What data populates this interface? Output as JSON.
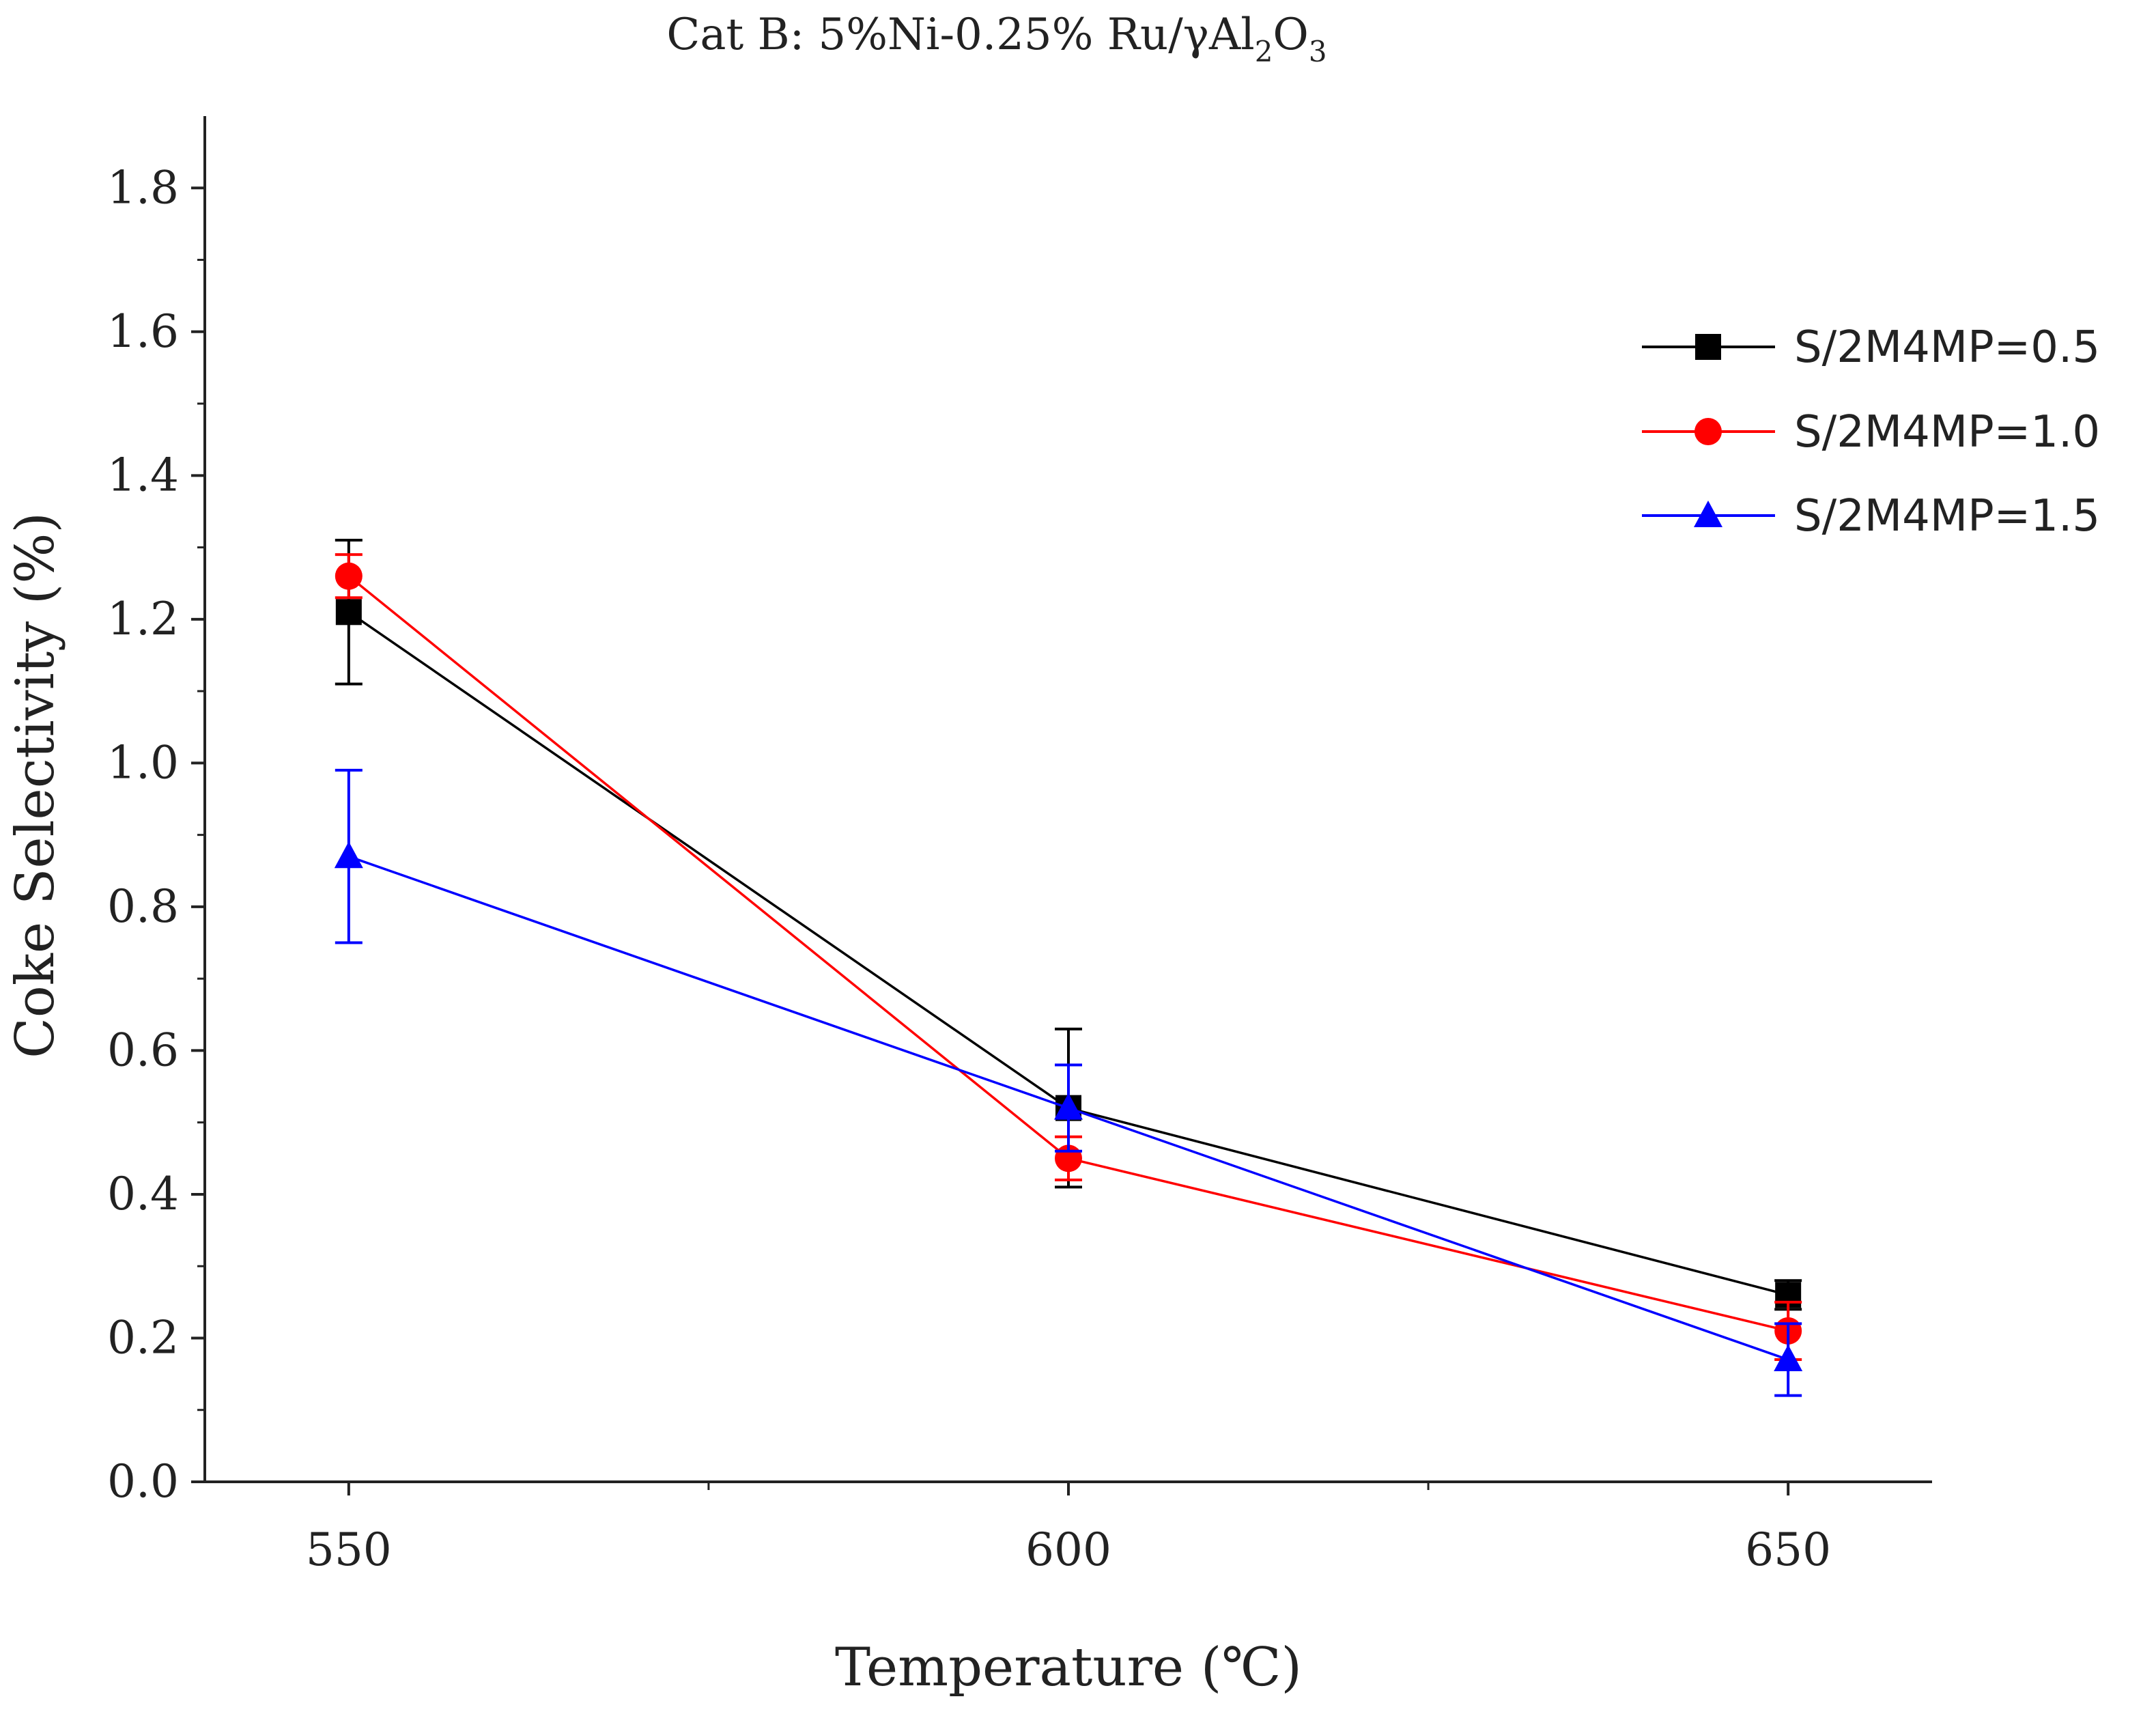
{
  "chart_data": {
    "type": "line",
    "title_parts": [
      "Cat B: 5%Ni-0.25% Ru/γAl",
      "2",
      "O",
      "3"
    ],
    "xlabel": "Temperature (℃)",
    "ylabel": "Coke Selectivity (%)",
    "x": [
      550,
      600,
      650
    ],
    "xlim": [
      540,
      660
    ],
    "ylim": [
      0.0,
      1.9
    ],
    "x_ticks": [
      550,
      600,
      650
    ],
    "x_tick_labels": [
      "550",
      "600",
      "650"
    ],
    "y_ticks": [
      0.0,
      0.2,
      0.4,
      0.6,
      0.8,
      1.0,
      1.2,
      1.4,
      1.6,
      1.8
    ],
    "y_tick_labels": [
      "0.0",
      "0.2",
      "0.4",
      "0.6",
      "0.8",
      "1.0",
      "1.2",
      "1.4",
      "1.6",
      "1.8"
    ],
    "legend_position": "right",
    "series": [
      {
        "name": "S/2M4MP=0.5",
        "color": "#000000",
        "marker": "square",
        "values": [
          1.21,
          0.52,
          0.26
        ],
        "errors": [
          0.1,
          0.11,
          0.02
        ]
      },
      {
        "name": "S/2M4MP=1.0",
        "color": "#ff0000",
        "marker": "circle",
        "values": [
          1.26,
          0.45,
          0.21
        ],
        "errors": [
          0.03,
          0.03,
          0.04
        ]
      },
      {
        "name": "S/2M4MP=1.5",
        "color": "#0000ff",
        "marker": "triangle",
        "values": [
          0.87,
          0.52,
          0.17
        ],
        "errors": [
          0.12,
          0.06,
          0.05
        ]
      }
    ]
  }
}
